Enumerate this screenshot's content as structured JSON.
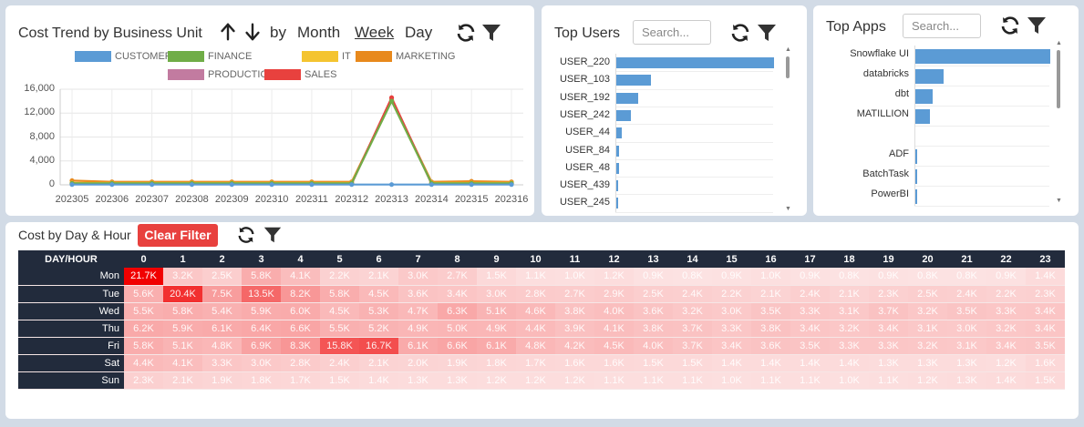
{
  "colors": {
    "accent": "#5b9bd5",
    "danger": "#e8413e",
    "header_bg": "#222b3c",
    "heat_high": "#f10000",
    "heat_low": "#fde9e9"
  },
  "trend": {
    "title": "Cost Trend by Business Unit",
    "sort_up_icon": "arrow-up-icon",
    "sort_down_icon": "arrow-down-icon",
    "by_label": "by",
    "granularity": [
      "Month",
      "Week",
      "Day"
    ],
    "active_granularity": "Week",
    "refresh_icon": "refresh-icon",
    "filter_icon": "filter-icon"
  },
  "chart_data": {
    "type": "line",
    "title": "",
    "xlabel": "",
    "ylabel": "",
    "ylim": [
      0,
      16000
    ],
    "yticks": [
      "0",
      "4,000",
      "8,000",
      "12,000",
      "16,000"
    ],
    "grid": true,
    "legend_position": "top",
    "x": [
      "202305",
      "202306",
      "202307",
      "202308",
      "202309",
      "202310",
      "202311",
      "202312",
      "202313",
      "202314",
      "202315",
      "202316"
    ],
    "series": [
      {
        "name": "CUSTOMER CARE",
        "color": "#5b9bd5",
        "values": [
          50,
          50,
          50,
          50,
          50,
          50,
          50,
          50,
          50,
          50,
          50,
          50
        ]
      },
      {
        "name": "FINANCE",
        "color": "#70ad47",
        "values": [
          250,
          250,
          250,
          250,
          250,
          250,
          250,
          250,
          14000,
          250,
          250,
          250
        ]
      },
      {
        "name": "IT",
        "color": "#f4c430",
        "values": [
          300,
          300,
          300,
          300,
          300,
          300,
          300,
          300,
          14200,
          300,
          300,
          300
        ]
      },
      {
        "name": "MARKETING",
        "color": "#e8891c",
        "values": [
          700,
          500,
          500,
          500,
          500,
          500,
          500,
          500,
          14200,
          500,
          600,
          500
        ]
      },
      {
        "name": "PRODUCTION",
        "color": "#c27ba0",
        "values": [
          150,
          150,
          150,
          150,
          150,
          150,
          150,
          150,
          14500,
          150,
          150,
          150
        ]
      },
      {
        "name": "SALES",
        "color": "#e8413e",
        "values": [
          200,
          200,
          200,
          200,
          200,
          200,
          200,
          200,
          14600,
          200,
          200,
          200
        ]
      }
    ]
  },
  "users": {
    "title": "Top Users",
    "search_placeholder": "Search...",
    "refresh_icon": "refresh-icon",
    "filter_icon": "filter-icon",
    "max": 100,
    "items": [
      {
        "label": "USER_220",
        "value": 100
      },
      {
        "label": "USER_103",
        "value": 22
      },
      {
        "label": "USER_192",
        "value": 14
      },
      {
        "label": "USER_242",
        "value": 9
      },
      {
        "label": "USER_44",
        "value": 3.5
      },
      {
        "label": "USER_84",
        "value": 2
      },
      {
        "label": "USER_48",
        "value": 1.5
      },
      {
        "label": "USER_439",
        "value": 1.2
      },
      {
        "label": "USER_245",
        "value": 1
      }
    ]
  },
  "apps": {
    "title": "Top Apps",
    "search_placeholder": "Search...",
    "refresh_icon": "refresh-icon",
    "filter_icon": "filter-icon",
    "max": 100,
    "items": [
      {
        "label": "Snowflake UI",
        "value": 100
      },
      {
        "label": "databricks",
        "value": 21
      },
      {
        "label": "dbt",
        "value": 13
      },
      {
        "label": "MATILLION",
        "value": 11
      },
      {
        "label": "",
        "value": 0
      },
      {
        "label": "ADF",
        "value": 0.8
      },
      {
        "label": "BatchTask",
        "value": 0.6
      },
      {
        "label": "PowerBI",
        "value": 0.5
      }
    ]
  },
  "heatmap": {
    "title": "Cost by Day & Hour",
    "clear_filter_label": "Clear Filter",
    "refresh_icon": "refresh-icon",
    "filter_icon": "filter-icon",
    "corner_label": "DAY/HOUR",
    "hours": [
      "0",
      "1",
      "2",
      "3",
      "4",
      "5",
      "6",
      "7",
      "8",
      "9",
      "10",
      "11",
      "12",
      "13",
      "14",
      "15",
      "16",
      "17",
      "18",
      "19",
      "20",
      "21",
      "22",
      "23"
    ],
    "max": 21.7,
    "rows": [
      {
        "day": "Mon",
        "values": [
          21.7,
          3.2,
          2.5,
          5.8,
          4.1,
          2.2,
          2.1,
          3.0,
          2.7,
          1.5,
          1.1,
          1.0,
          1.2,
          0.9,
          0.8,
          0.9,
          1.0,
          0.9,
          0.8,
          0.9,
          0.8,
          0.8,
          0.9,
          1.4
        ]
      },
      {
        "day": "Tue",
        "values": [
          5.6,
          20.4,
          7.5,
          13.5,
          8.2,
          5.8,
          4.5,
          3.6,
          3.4,
          3.0,
          2.8,
          2.7,
          2.9,
          2.5,
          2.4,
          2.2,
          2.1,
          2.4,
          2.1,
          2.3,
          2.5,
          2.4,
          2.2,
          2.3
        ]
      },
      {
        "day": "Wed",
        "values": [
          5.5,
          5.8,
          5.4,
          5.9,
          6.0,
          4.5,
          5.3,
          4.7,
          6.3,
          5.1,
          4.6,
          3.8,
          4.0,
          3.6,
          3.2,
          3.0,
          3.5,
          3.3,
          3.1,
          3.7,
          3.2,
          3.5,
          3.3,
          3.4
        ]
      },
      {
        "day": "Thu",
        "values": [
          6.2,
          5.9,
          6.1,
          6.4,
          6.6,
          5.5,
          5.2,
          4.9,
          5.0,
          4.9,
          4.4,
          3.9,
          4.1,
          3.8,
          3.7,
          3.3,
          3.8,
          3.4,
          3.2,
          3.4,
          3.1,
          3.0,
          3.2,
          3.4
        ]
      },
      {
        "day": "Fri",
        "values": [
          5.8,
          5.1,
          4.8,
          6.9,
          8.3,
          15.8,
          16.7,
          6.1,
          6.6,
          6.1,
          4.8,
          4.2,
          4.5,
          4.0,
          3.7,
          3.4,
          3.6,
          3.5,
          3.3,
          3.3,
          3.2,
          3.1,
          3.4,
          3.5
        ]
      },
      {
        "day": "Sat",
        "values": [
          4.4,
          4.1,
          3.3,
          3.0,
          2.8,
          2.4,
          2.1,
          2.0,
          1.9,
          1.8,
          1.7,
          1.6,
          1.6,
          1.5,
          1.5,
          1.4,
          1.4,
          1.4,
          1.4,
          1.3,
          1.3,
          1.3,
          1.2,
          1.6
        ]
      },
      {
        "day": "Sun",
        "values": [
          2.3,
          2.1,
          1.9,
          1.8,
          1.7,
          1.5,
          1.4,
          1.3,
          1.3,
          1.2,
          1.2,
          1.2,
          1.1,
          1.1,
          1.1,
          1.0,
          1.1,
          1.1,
          1.0,
          1.1,
          1.2,
          1.3,
          1.4,
          1.5
        ]
      }
    ]
  }
}
